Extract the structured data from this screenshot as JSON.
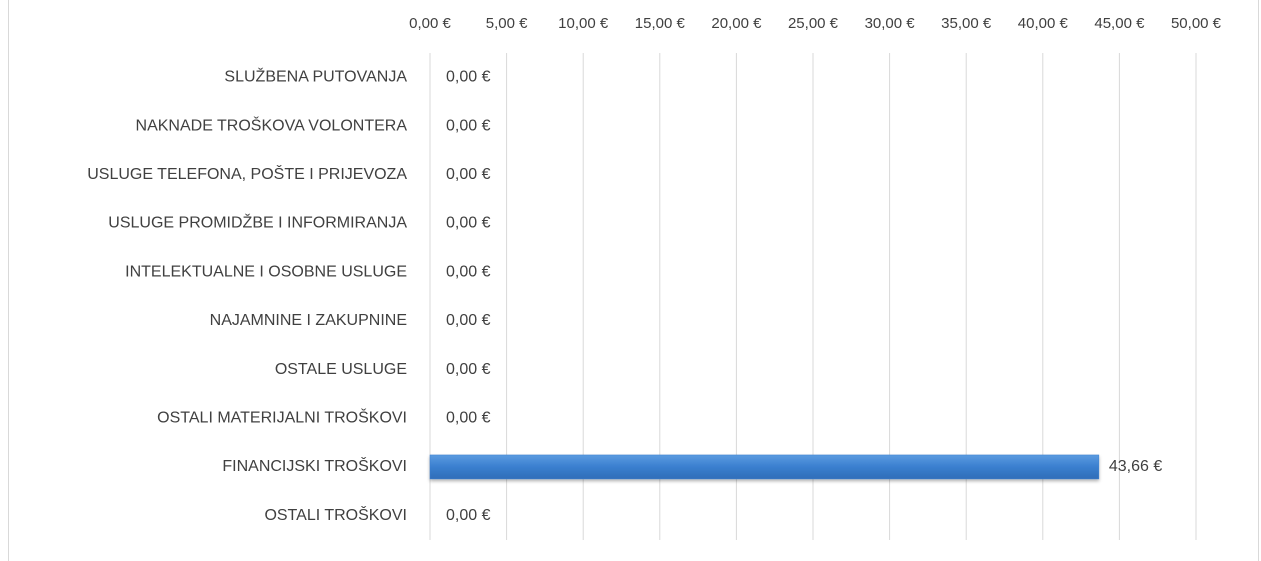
{
  "chart_data": {
    "type": "barh",
    "categories": [
      "SLUŽBENA PUTOVANJA",
      "NAKNADE TROŠKOVA VOLONTERA",
      "USLUGE TELEFONA, POŠTE I PRIJEVOZA",
      "USLUGE PROMIDŽBE I INFORMIRANJA",
      "INTELEKTUALNE I OSOBNE USLUGE",
      "NAJAMNINE I ZAKUPNINE",
      "OSTALE USLUGE",
      "OSTALI MATERIJALNI TROŠKOVI",
      "FINANCIJSKI TROŠKOVI",
      "OSTALI TROŠKOVI"
    ],
    "values": [
      0,
      0,
      0,
      0,
      0,
      0,
      0,
      0,
      43.66,
      0
    ],
    "value_labels": [
      "0,00 €",
      "0,00 €",
      "0,00 €",
      "0,00 €",
      "0,00 €",
      "0,00 €",
      "0,00 €",
      "0,00 €",
      "43,66 €",
      "0,00 €"
    ],
    "color": "#3a7fcf",
    "xlim": [
      0,
      50
    ],
    "xticks": [
      {
        "value": 0,
        "label": "0,00 €"
      },
      {
        "value": 5,
        "label": "5,00 €"
      },
      {
        "value": 10,
        "label": "10,00 €"
      },
      {
        "value": 15,
        "label": "15,00 €"
      },
      {
        "value": 20,
        "label": "20,00 €"
      },
      {
        "value": 25,
        "label": "25,00 €"
      },
      {
        "value": 30,
        "label": "30,00 €"
      },
      {
        "value": 35,
        "label": "35,00 €"
      },
      {
        "value": 40,
        "label": "40,00 €"
      },
      {
        "value": 45,
        "label": "45,00 €"
      },
      {
        "value": 50,
        "label": "50,00 €"
      }
    ],
    "grid": true
  }
}
